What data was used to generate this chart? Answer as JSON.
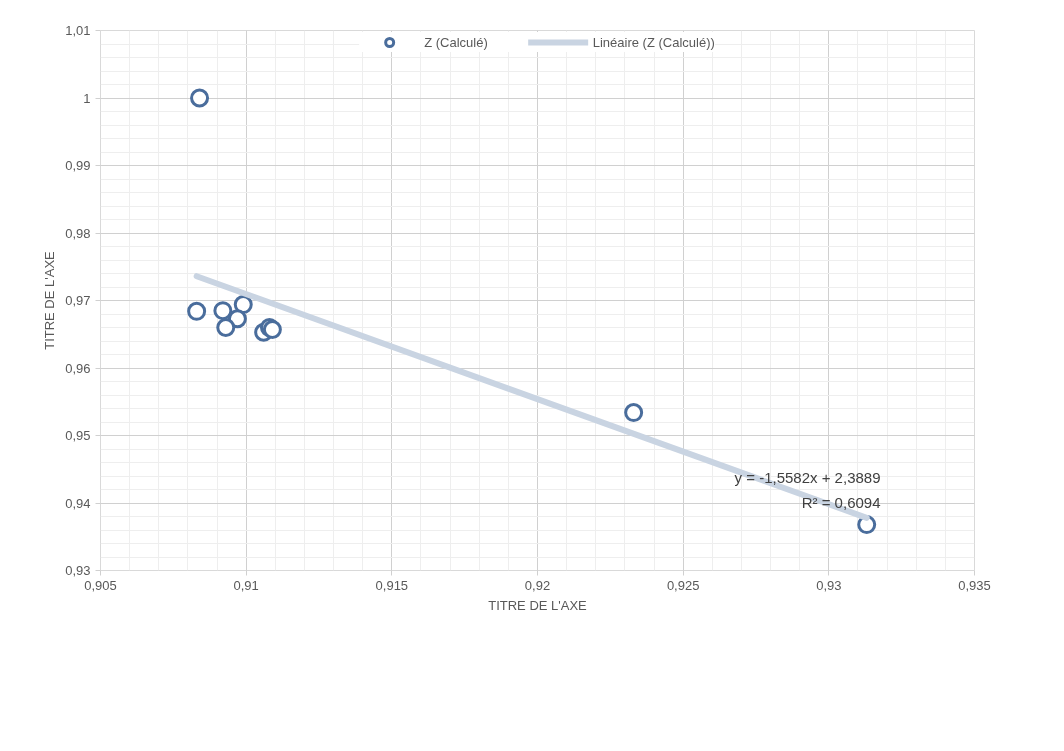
{
  "chart_data": {
    "type": "scatter",
    "xlabel": "TITRE DE L'AXE",
    "ylabel": "TITRE DE L'AXE",
    "series": [
      {
        "name": "Z (Calculé)",
        "marker": "circle",
        "color": "#4a6d9c",
        "x": [
          0.9083,
          0.9092,
          0.9099,
          0.9097,
          0.9093,
          0.9106,
          0.9108,
          0.9109,
          0.9084,
          0.9233,
          0.9313
        ],
        "values": [
          0.9684,
          0.9685,
          0.9694,
          0.9673,
          0.966,
          0.9653,
          0.966,
          0.9657,
          1.0,
          0.9534,
          0.9368
        ]
      },
      {
        "name": "Linéaire (Z (Calculé))",
        "type": "line",
        "color": "#c9d4e2",
        "x": [
          0.9083,
          0.9313
        ],
        "values": [
          0.9736,
          0.9378
        ]
      }
    ],
    "xlim": [
      0.905,
      0.935
    ],
    "ylim": [
      0.93,
      1.01
    ],
    "xticks": [
      {
        "value": 0.905,
        "label": "0,905"
      },
      {
        "value": 0.91,
        "label": "0,91"
      },
      {
        "value": 0.915,
        "label": "0,915"
      },
      {
        "value": 0.92,
        "label": "0,92"
      },
      {
        "value": 0.925,
        "label": "0,925"
      },
      {
        "value": 0.93,
        "label": "0,93"
      },
      {
        "value": 0.935,
        "label": "0,935"
      }
    ],
    "yticks": [
      {
        "value": 0.93,
        "label": "0,93"
      },
      {
        "value": 0.94,
        "label": "0,94"
      },
      {
        "value": 0.95,
        "label": "0,95"
      },
      {
        "value": 0.96,
        "label": "0,96"
      },
      {
        "value": 0.97,
        "label": "0,97"
      },
      {
        "value": 0.98,
        "label": "0,98"
      },
      {
        "value": 0.99,
        "label": "0,99"
      },
      {
        "value": 1,
        "label": "1"
      },
      {
        "value": 1.01,
        "label": "1,01"
      }
    ],
    "annotations": [
      "y = -1,5582x + 2,3889",
      "R² = 0,6094"
    ],
    "grid": true,
    "legend": "top",
    "line_style": "solid"
  }
}
